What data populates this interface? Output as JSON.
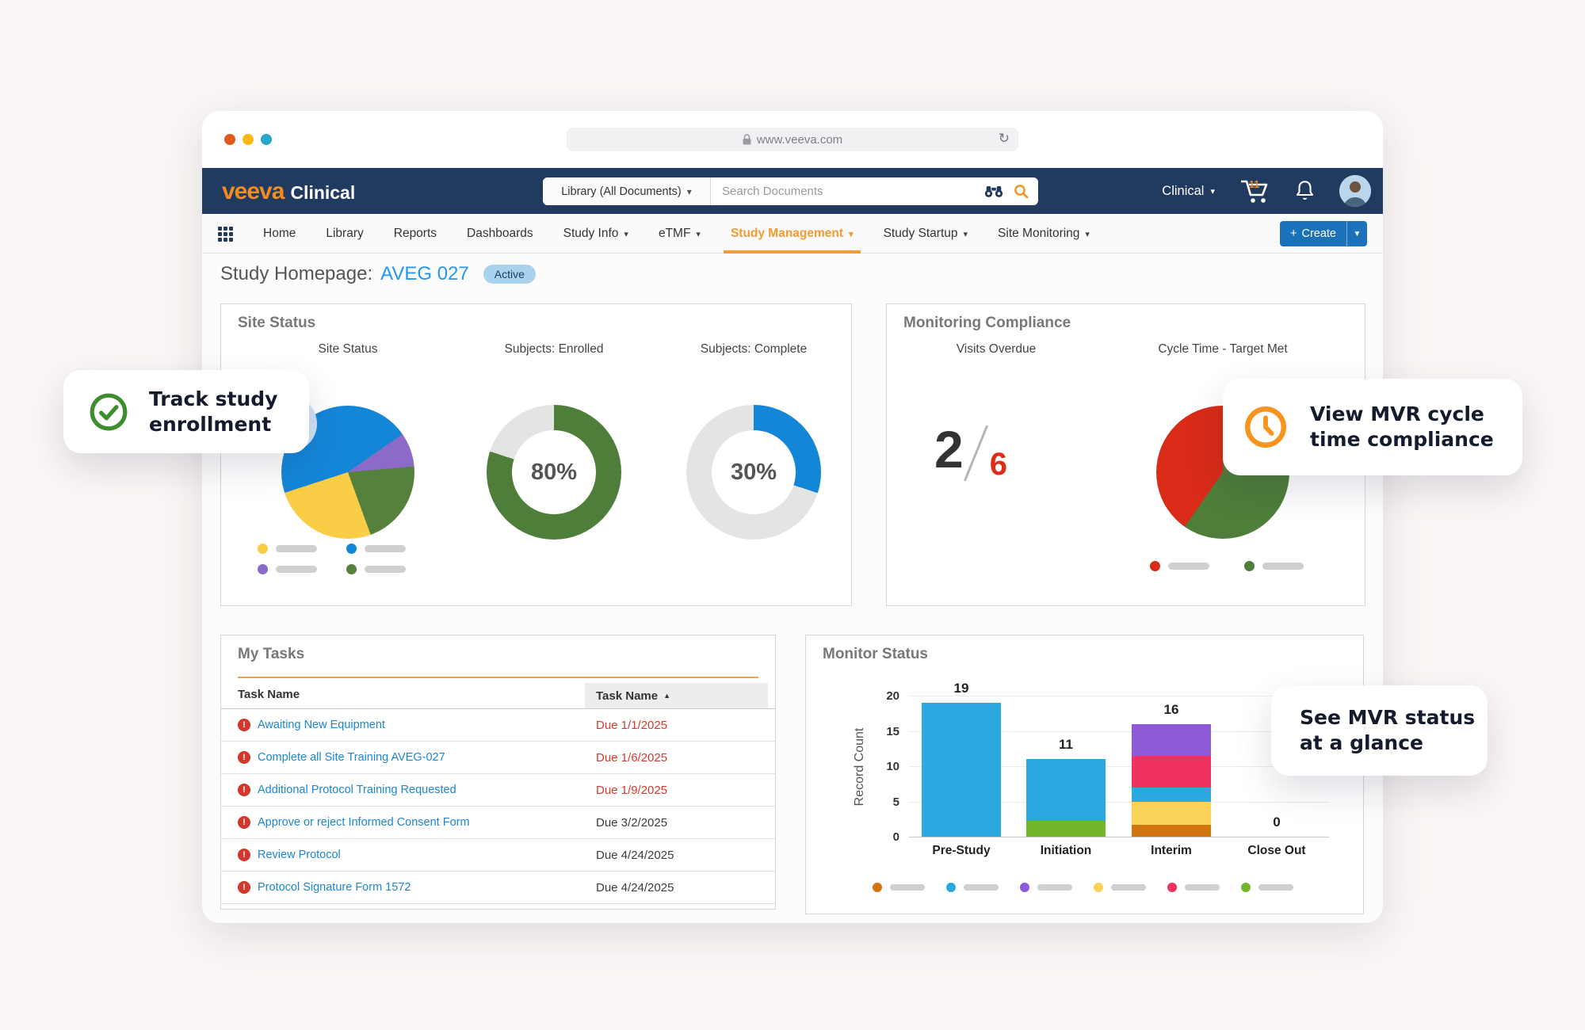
{
  "browser": {
    "url": "www.veeva.com"
  },
  "app_header": {
    "brand": "veeva",
    "product": "Clinical",
    "search_scope": "Library (All Documents)",
    "search_placeholder": "Search Documents",
    "account_menu": "Clinical",
    "cart_count": "11"
  },
  "nav": {
    "items": [
      {
        "label": "Home",
        "dropdown": false,
        "active": false
      },
      {
        "label": "Library",
        "dropdown": false,
        "active": false
      },
      {
        "label": "Reports",
        "dropdown": false,
        "active": false
      },
      {
        "label": "Dashboards",
        "dropdown": false,
        "active": false
      },
      {
        "label": "Study Info",
        "dropdown": true,
        "active": false
      },
      {
        "label": "eTMF",
        "dropdown": true,
        "active": false
      },
      {
        "label": "Study Management",
        "dropdown": true,
        "active": true
      },
      {
        "label": "Study Startup",
        "dropdown": true,
        "active": false
      },
      {
        "label": "Site Monitoring",
        "dropdown": true,
        "active": false
      }
    ],
    "create_label": "Create",
    "create_plus": "+"
  },
  "page": {
    "title": "Study Homepage:",
    "study_id": "AVEG 027",
    "status": "Active"
  },
  "site_status_card": {
    "title": "Site Status",
    "chart_titles": [
      "Site Status",
      "Subjects: Enrolled",
      "Subjects: Complete"
    ],
    "enrolled_pct": "80%",
    "complete_pct": "30%"
  },
  "monitoring_card": {
    "title": "Monitoring Compliance",
    "visits_title": "Visits Overdue",
    "visits_overdue": "2",
    "visits_total": "6",
    "cycle_title": "Cycle Time - Target Met"
  },
  "tasks_card": {
    "title": "My Tasks",
    "col_left": "Task Name",
    "col_right": "Task Name",
    "sort_indicator": "▲",
    "rows": [
      {
        "name": "Awaiting New Equipment",
        "due": "Due 1/1/2025",
        "overdue": true
      },
      {
        "name": "Complete all Site Training AVEG-027",
        "due": "Due 1/6/2025",
        "overdue": true
      },
      {
        "name": "Additional Protocol Training Requested",
        "due": "Due 1/9/2025",
        "overdue": true
      },
      {
        "name": "Approve or reject Informed Consent Form",
        "due": "Due 3/2/2025",
        "overdue": false
      },
      {
        "name": "Review Protocol",
        "due": "Due 4/24/2025",
        "overdue": false
      },
      {
        "name": "Protocol Signature Form 1572",
        "due": "Due 4/24/2025",
        "overdue": false
      }
    ]
  },
  "monitor_card": {
    "title": "Monitor Status"
  },
  "callouts": {
    "track": {
      "line1": "Track study",
      "line2": "enrollment"
    },
    "view": {
      "line1": "View MVR cycle",
      "line2": "time compliance"
    },
    "see": {
      "line1": "See MVR status",
      "line2": "at a glance"
    }
  },
  "colors": {
    "header_navy": "#213a5f",
    "brand_orange": "#f08c21",
    "nav_active_orange": "#f59b33",
    "link_blue": "#2196f3",
    "create_blue": "#1b72bb",
    "overdue_red": "#d63a2f"
  },
  "chart_data": [
    {
      "type": "pie",
      "title": "Site Status",
      "start_angle": 252,
      "slices": [
        {
          "name": "blue",
          "color": "#1486d8",
          "degrees": 163
        },
        {
          "name": "purple",
          "color": "#8c6bc8",
          "degrees": 30
        },
        {
          "name": "green",
          "color": "#55813c",
          "degrees": 75
        },
        {
          "name": "yellow",
          "color": "#f9cd46",
          "degrees": 92
        }
      ],
      "legend_colors": [
        "#f9cd46",
        "#1486d8",
        "#8c6bc8",
        "#55813c"
      ]
    },
    {
      "type": "donut",
      "title": "Subjects: Enrolled",
      "value": 80,
      "label": "80%",
      "color": "#4f7e3a",
      "track": "#e4e4e4"
    },
    {
      "type": "donut",
      "title": "Subjects: Complete",
      "value": 30,
      "label": "30%",
      "color": "#1486d8",
      "track": "#e4e4e4"
    },
    {
      "type": "pie",
      "title": "Cycle Time - Target Met",
      "start_angle": 0,
      "slices": [
        {
          "name": "target-met-green",
          "color": "#4f7e3a",
          "degrees": 215
        },
        {
          "name": "target-missed-red",
          "color": "#d92b18",
          "degrees": 145
        }
      ],
      "legend_colors": [
        "#d92b18",
        "#4f7e3a"
      ]
    },
    {
      "type": "bar-stacked",
      "title": "Monitor Status",
      "ylabel": "Record Count",
      "ylim": [
        0,
        20
      ],
      "yticks": [
        0,
        5,
        10,
        15,
        20
      ],
      "categories": [
        "Pre-Study",
        "Initiation",
        "Interim",
        "Close Out"
      ],
      "totals": [
        19,
        11,
        16,
        0
      ],
      "bars": [
        [
          {
            "color": "#29a9e0",
            "value": 19
          }
        ],
        [
          {
            "color": "#72b62c",
            "value": 2.2
          },
          {
            "color": "#29a9e0",
            "value": 8.8
          }
        ],
        [
          {
            "color": "#d0750f",
            "value": 1.7
          },
          {
            "color": "#fbd258",
            "value": 3.2
          },
          {
            "color": "#29a9e0",
            "value": 2.1
          },
          {
            "color": "#f03263",
            "value": 4.5
          },
          {
            "color": "#8d5bd8",
            "value": 4.5
          }
        ],
        []
      ],
      "legend_colors": [
        "#d0750f",
        "#29a9e0",
        "#8d5bd8",
        "#fbd258",
        "#f03263",
        "#72b62c"
      ]
    }
  ]
}
